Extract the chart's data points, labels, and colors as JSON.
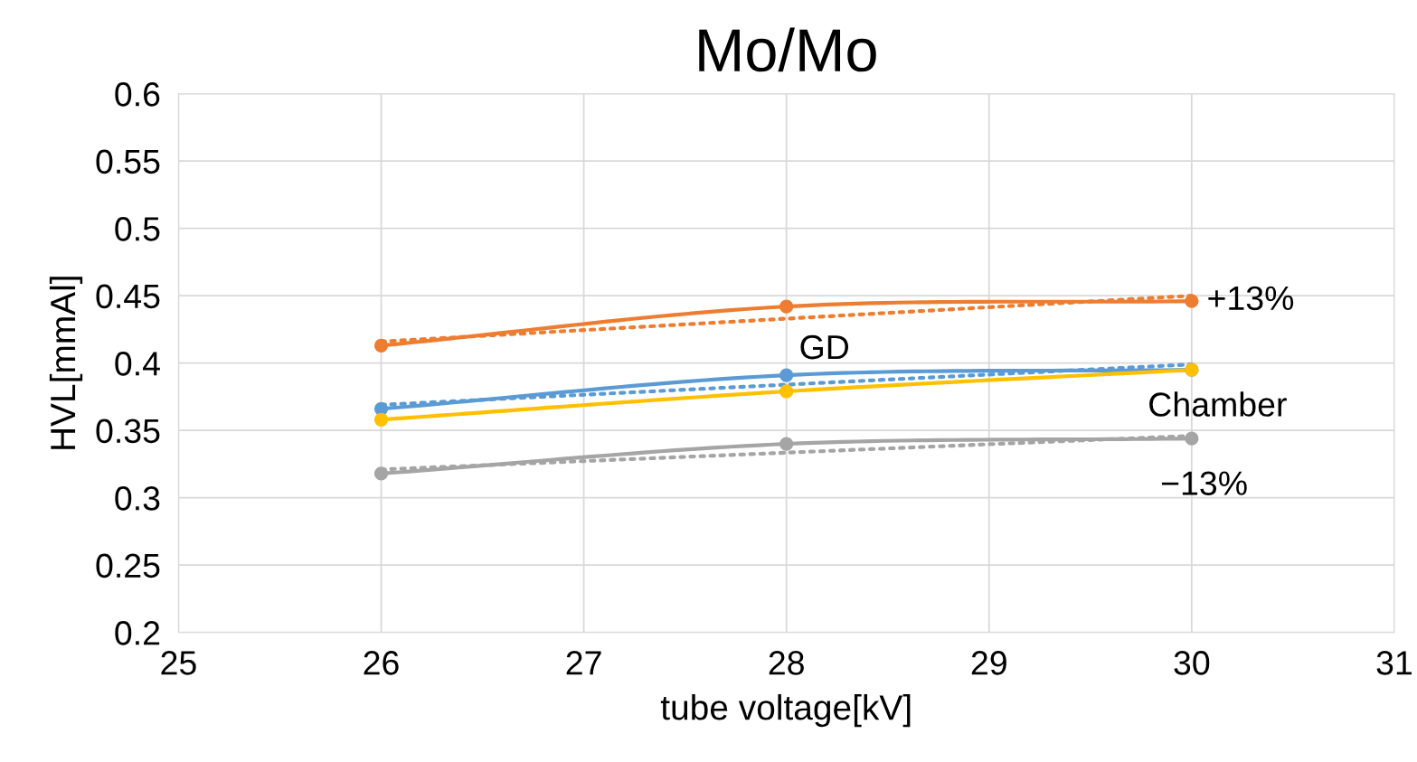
{
  "chart_data": {
    "type": "line",
    "title": "Mo/Mo",
    "xlabel": "tube voltage[kV]",
    "ylabel": "HVL[mmAl]",
    "xlim": [
      25,
      31
    ],
    "xticks": [
      25,
      26,
      27,
      28,
      29,
      30,
      31
    ],
    "ylim": [
      0.2,
      0.6
    ],
    "yticks": [
      0.2,
      0.25,
      0.3,
      0.35,
      0.4,
      0.45,
      0.5,
      0.55,
      0.6
    ],
    "grid": true,
    "legend": false,
    "marker": "circle",
    "line_style": "solid",
    "x": [
      26,
      28,
      30
    ],
    "series": [
      {
        "name": "+13%",
        "color": "#ed7d31",
        "values": [
          0.413,
          0.442,
          0.446
        ]
      },
      {
        "name": "GD",
        "color": "#5b9bd5",
        "values": [
          0.366,
          0.391,
          0.395
        ]
      },
      {
        "name": "Chamber",
        "color": "#ffc000",
        "values": [
          0.358,
          0.379,
          0.395
        ]
      },
      {
        "name": "−13%",
        "color": "#a5a5a5",
        "values": [
          0.318,
          0.34,
          0.344
        ]
      },
      {
        "color": "#ed7d31",
        "values": [
          0.416,
          0.433,
          0.45
        ],
        "marker": "none",
        "line_style": "dotted"
      },
      {
        "color": "#5b9bd5",
        "values": [
          0.369,
          0.384,
          0.399
        ],
        "marker": "none",
        "line_style": "dotted"
      },
      {
        "color": "#a5a5a5",
        "values": [
          0.321,
          0.3335,
          0.346
        ],
        "marker": "none",
        "line_style": "dotted"
      }
    ]
  }
}
